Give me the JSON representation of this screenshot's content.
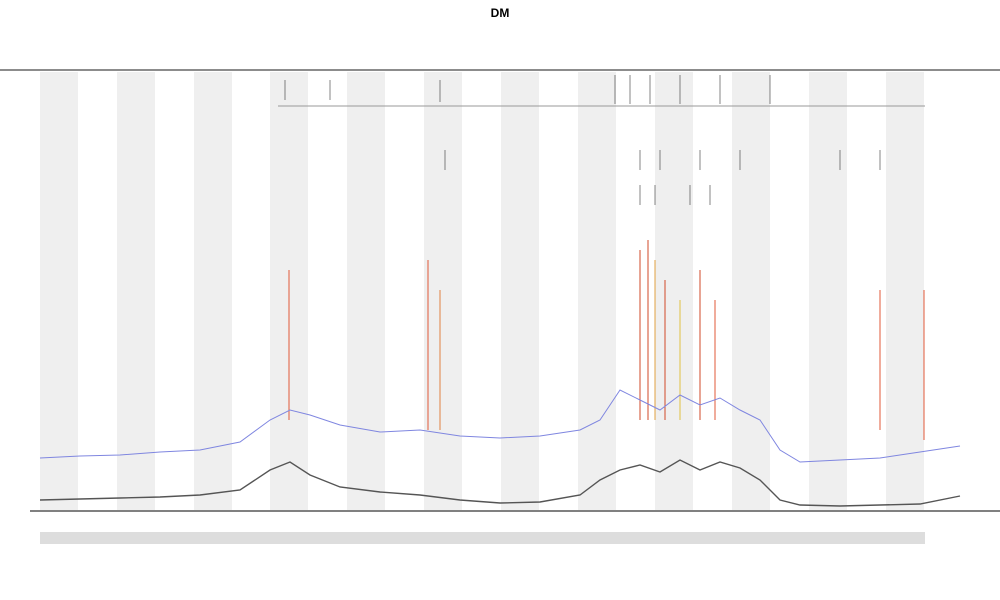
{
  "header": {
    "title": "DM"
  }
}
